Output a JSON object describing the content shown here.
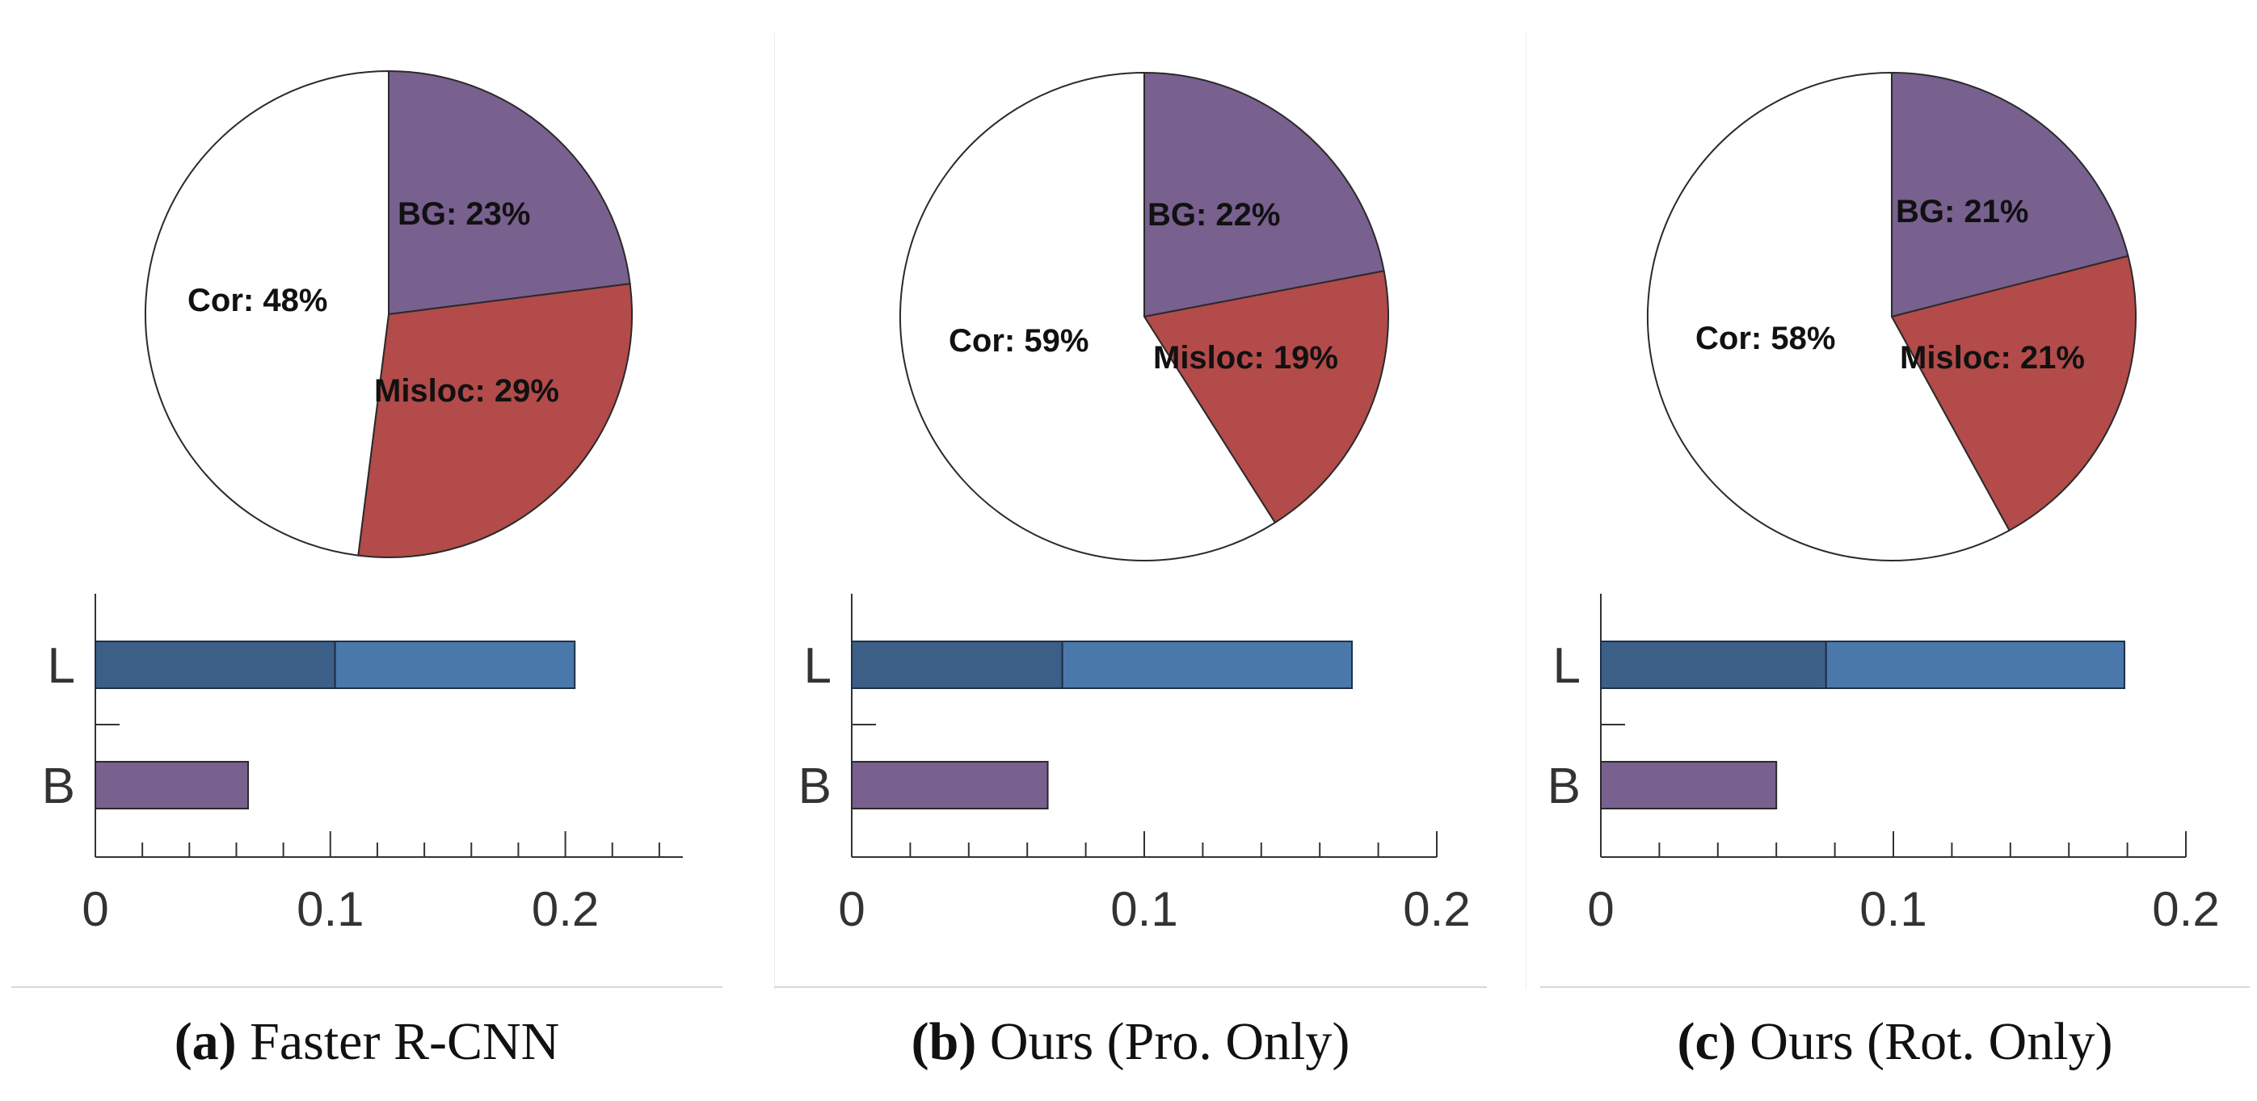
{
  "colors": {
    "bg": "#78608f",
    "misloc": "#b24b4a",
    "cor": "#ffffff",
    "l_dark": "#3c5f87",
    "l_light": "#4a78aa",
    "b_bar": "#78608f",
    "axis": "#333333"
  },
  "chart_data": [
    {
      "type": "pie",
      "panel": "a",
      "caption_letter": "(a)",
      "caption_text": "Faster R-CNN",
      "slices": [
        {
          "name": "BG",
          "label": "BG: 23%",
          "value": 23
        },
        {
          "name": "Misloc",
          "label": "Misloc: 29%",
          "value": 29
        },
        {
          "name": "Cor",
          "label": "Cor: 48%",
          "value": 48
        }
      ],
      "bars": {
        "type": "bar",
        "categories": [
          "L",
          "B"
        ],
        "L_segments": [
          0.102,
          0.102
        ],
        "B_value": 0.065,
        "xlim": [
          0,
          0.25
        ],
        "ticks": [
          "0",
          "0.1",
          "0.2"
        ],
        "tick_values": [
          0,
          0.1,
          0.2
        ],
        "minor_step": 0.02
      }
    },
    {
      "type": "pie",
      "panel": "b",
      "caption_letter": "(b)",
      "caption_text": "Ours (Pro. Only)",
      "slices": [
        {
          "name": "BG",
          "label": "BG: 22%",
          "value": 22
        },
        {
          "name": "Misloc",
          "label": "Misloc: 19%",
          "value": 19
        },
        {
          "name": "Cor",
          "label": "Cor: 59%",
          "value": 59
        }
      ],
      "bars": {
        "type": "bar",
        "categories": [
          "L",
          "B"
        ],
        "L_segments": [
          0.072,
          0.099
        ],
        "B_value": 0.067,
        "xlim": [
          0,
          0.2
        ],
        "ticks": [
          "0",
          "0.1",
          "0.2"
        ],
        "tick_values": [
          0,
          0.1,
          0.2
        ],
        "minor_step": 0.02
      }
    },
    {
      "type": "pie",
      "panel": "c",
      "caption_letter": "(c)",
      "caption_text": "Ours (Rot. Only)",
      "slices": [
        {
          "name": "BG",
          "label": "BG: 21%",
          "value": 21
        },
        {
          "name": "Misloc",
          "label": "Misloc: 21%",
          "value": 21
        },
        {
          "name": "Cor",
          "label": "Cor: 58%",
          "value": 58
        }
      ],
      "bars": {
        "type": "bar",
        "categories": [
          "L",
          "B"
        ],
        "L_segments": [
          0.077,
          0.102
        ],
        "B_value": 0.06,
        "xlim": [
          0,
          0.2
        ],
        "ticks": [
          "0",
          "0.1",
          "0.2"
        ],
        "tick_values": [
          0,
          0.1,
          0.2
        ],
        "minor_step": 0.02
      }
    }
  ]
}
